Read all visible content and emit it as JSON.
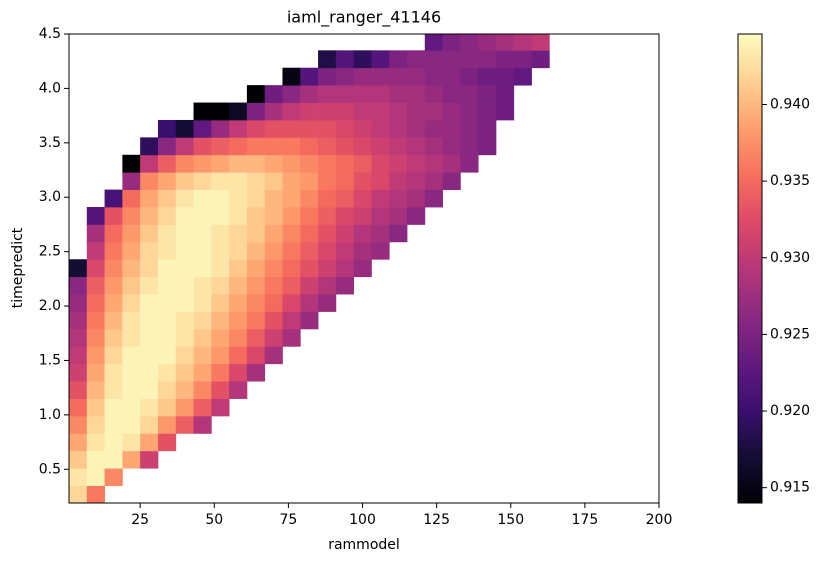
{
  "chart_data": {
    "type": "heatmap",
    "title": "iaml_ranger_41146",
    "xlabel": "rammodel",
    "ylabel": "timepredict",
    "colormap": "magma",
    "xlim": [
      1,
      200
    ],
    "ylim": [
      0.19,
      4.5
    ],
    "xticks": [
      25,
      50,
      75,
      100,
      125,
      150,
      175,
      200
    ],
    "yticks": [
      {
        "value": 0.5,
        "label": "0.5"
      },
      {
        "value": 1.0,
        "label": "1.0"
      },
      {
        "value": 1.5,
        "label": "1.5"
      },
      {
        "value": 2.0,
        "label": "2.0"
      },
      {
        "value": 2.5,
        "label": "2.5"
      },
      {
        "value": 3.0,
        "label": "3.0"
      },
      {
        "value": 3.5,
        "label": "3.5"
      },
      {
        "value": 4.0,
        "label": "4.0"
      },
      {
        "value": 4.5,
        "label": "4.5"
      }
    ],
    "clim": [
      0.914,
      0.9446
    ],
    "cticks": [
      {
        "value": 0.915,
        "label": "0.915"
      },
      {
        "value": 0.92,
        "label": "0.920"
      },
      {
        "value": 0.925,
        "label": "0.925"
      },
      {
        "value": 0.93,
        "label": "0.930"
      },
      {
        "value": 0.935,
        "label": "0.935"
      },
      {
        "value": 0.94,
        "label": "0.940"
      }
    ],
    "x_edges": [
      1,
      7,
      13,
      19,
      25,
      31,
      37,
      43,
      49,
      55,
      61,
      67,
      73,
      79,
      85,
      91,
      97,
      103,
      109,
      115,
      121,
      127,
      133,
      139,
      145,
      151,
      157,
      163
    ],
    "y_edges": [
      0.19,
      0.35,
      0.51,
      0.67,
      0.83,
      0.99,
      1.15,
      1.31,
      1.47,
      1.63,
      1.79,
      1.95,
      2.11,
      2.27,
      2.43,
      2.59,
      2.75,
      2.91,
      3.07,
      3.23,
      3.39,
      3.55,
      3.71,
      3.87,
      4.03,
      4.19,
      4.35,
      4.51
    ],
    "z": [
      [
        0.942,
        0.936,
        null,
        null,
        null,
        null,
        null,
        null,
        null,
        null,
        null,
        null,
        null,
        null,
        null,
        null,
        null,
        null,
        null,
        null,
        null,
        null,
        null,
        null,
        null,
        null,
        null
      ],
      [
        0.943,
        0.944,
        0.937,
        null,
        null,
        null,
        null,
        null,
        null,
        null,
        null,
        null,
        null,
        null,
        null,
        null,
        null,
        null,
        null,
        null,
        null,
        null,
        null,
        null,
        null,
        null,
        null
      ],
      [
        0.941,
        0.944,
        0.944,
        0.939,
        0.931,
        null,
        null,
        null,
        null,
        null,
        null,
        null,
        null,
        null,
        null,
        null,
        null,
        null,
        null,
        null,
        null,
        null,
        null,
        null,
        null,
        null,
        null
      ],
      [
        0.939,
        0.943,
        0.944,
        0.943,
        0.939,
        0.933,
        null,
        null,
        null,
        null,
        null,
        null,
        null,
        null,
        null,
        null,
        null,
        null,
        null,
        null,
        null,
        null,
        null,
        null,
        null,
        null,
        null
      ],
      [
        0.937,
        0.942,
        0.944,
        0.944,
        0.942,
        0.938,
        0.934,
        0.929,
        null,
        null,
        null,
        null,
        null,
        null,
        null,
        null,
        null,
        null,
        null,
        null,
        null,
        null,
        null,
        null,
        null,
        null,
        null
      ],
      [
        0.935,
        0.941,
        0.944,
        0.944,
        0.943,
        0.941,
        0.938,
        0.934,
        0.93,
        null,
        null,
        null,
        null,
        null,
        null,
        null,
        null,
        null,
        null,
        null,
        null,
        null,
        null,
        null,
        null,
        null,
        null
      ],
      [
        0.933,
        0.94,
        0.943,
        0.944,
        0.944,
        0.942,
        0.94,
        0.937,
        0.933,
        0.929,
        null,
        null,
        null,
        null,
        null,
        null,
        null,
        null,
        null,
        null,
        null,
        null,
        null,
        null,
        null,
        null,
        null
      ],
      [
        0.931,
        0.939,
        0.943,
        0.944,
        0.944,
        0.943,
        0.941,
        0.939,
        0.936,
        0.932,
        0.928,
        null,
        null,
        null,
        null,
        null,
        null,
        null,
        null,
        null,
        null,
        null,
        null,
        null,
        null,
        null,
        null
      ],
      [
        0.93,
        0.938,
        0.942,
        0.944,
        0.944,
        0.944,
        0.942,
        0.94,
        0.938,
        0.935,
        0.932,
        0.928,
        null,
        null,
        null,
        null,
        null,
        null,
        null,
        null,
        null,
        null,
        null,
        null,
        null,
        null,
        null
      ],
      [
        0.929,
        0.937,
        0.941,
        0.943,
        0.944,
        0.944,
        0.943,
        0.941,
        0.939,
        0.937,
        0.934,
        0.931,
        0.928,
        null,
        null,
        null,
        null,
        null,
        null,
        null,
        null,
        null,
        null,
        null,
        null,
        null,
        null
      ],
      [
        0.928,
        0.936,
        0.94,
        0.943,
        0.944,
        0.944,
        0.943,
        0.942,
        0.94,
        0.938,
        0.936,
        0.933,
        0.93,
        0.927,
        null,
        null,
        null,
        null,
        null,
        null,
        null,
        null,
        null,
        null,
        null,
        null,
        null
      ],
      [
        0.927,
        0.935,
        0.939,
        0.942,
        0.944,
        0.944,
        0.944,
        0.943,
        0.941,
        0.939,
        0.937,
        0.935,
        0.932,
        0.929,
        0.927,
        null,
        null,
        null,
        null,
        null,
        null,
        null,
        null,
        null,
        null,
        null,
        null
      ],
      [
        0.926,
        0.934,
        0.938,
        0.941,
        0.943,
        0.944,
        0.944,
        0.943,
        0.942,
        0.94,
        0.938,
        0.936,
        0.934,
        0.931,
        0.929,
        0.927,
        null,
        null,
        null,
        null,
        null,
        null,
        null,
        null,
        null,
        null,
        null
      ],
      [
        0.917,
        0.932,
        0.937,
        0.94,
        0.942,
        0.944,
        0.944,
        0.944,
        0.943,
        0.941,
        0.939,
        0.937,
        0.935,
        0.933,
        0.931,
        0.929,
        0.927,
        null,
        null,
        null,
        null,
        null,
        null,
        null,
        null,
        null,
        null
      ],
      [
        null,
        0.93,
        0.936,
        0.939,
        0.942,
        0.943,
        0.944,
        0.944,
        0.943,
        0.942,
        0.94,
        0.938,
        0.936,
        0.934,
        0.932,
        0.93,
        0.928,
        0.927,
        null,
        null,
        null,
        null,
        null,
        null,
        null,
        null,
        null
      ],
      [
        null,
        0.928,
        0.935,
        0.938,
        0.941,
        0.943,
        0.944,
        0.944,
        0.943,
        0.942,
        0.941,
        0.939,
        0.937,
        0.935,
        0.933,
        0.931,
        0.929,
        0.928,
        0.926,
        null,
        null,
        null,
        null,
        null,
        null,
        null,
        null
      ],
      [
        null,
        0.922,
        0.933,
        0.937,
        0.94,
        0.942,
        0.944,
        0.944,
        0.944,
        0.943,
        0.941,
        0.94,
        0.938,
        0.936,
        0.934,
        0.932,
        0.931,
        0.929,
        0.928,
        0.926,
        null,
        null,
        null,
        null,
        null,
        null,
        null
      ],
      [
        null,
        null,
        0.921,
        0.935,
        0.939,
        0.941,
        0.943,
        0.944,
        0.944,
        0.943,
        0.942,
        0.94,
        0.939,
        0.937,
        0.935,
        0.934,
        0.932,
        0.93,
        0.929,
        0.928,
        0.926,
        null,
        null,
        null,
        null,
        null,
        null
      ],
      [
        null,
        null,
        null,
        0.927,
        0.937,
        0.939,
        0.941,
        0.942,
        0.943,
        0.943,
        0.942,
        0.941,
        0.939,
        0.938,
        0.936,
        0.935,
        0.933,
        0.932,
        0.93,
        0.929,
        0.928,
        0.926,
        null,
        null,
        null,
        null,
        null
      ],
      [
        null,
        null,
        null,
        0.914,
        0.93,
        0.934,
        0.937,
        0.938,
        0.939,
        0.94,
        0.94,
        0.939,
        0.938,
        0.937,
        0.936,
        0.935,
        0.934,
        0.932,
        0.931,
        0.93,
        0.929,
        0.928,
        0.926,
        null,
        null,
        null,
        null
      ],
      [
        null,
        null,
        null,
        null,
        0.919,
        0.926,
        0.93,
        0.933,
        0.934,
        0.935,
        0.936,
        0.936,
        0.936,
        0.935,
        0.934,
        0.933,
        0.932,
        0.931,
        0.93,
        0.929,
        0.928,
        0.927,
        0.926,
        0.925,
        null,
        null,
        null
      ],
      [
        null,
        null,
        null,
        null,
        null,
        0.92,
        0.917,
        0.923,
        0.927,
        0.93,
        0.932,
        0.933,
        0.933,
        0.933,
        0.933,
        0.932,
        0.931,
        0.93,
        0.929,
        0.928,
        0.927,
        0.927,
        0.926,
        0.925,
        null,
        null,
        null
      ],
      [
        null,
        null,
        null,
        null,
        null,
        null,
        null,
        0.914,
        0.914,
        0.916,
        0.925,
        0.928,
        0.93,
        0.931,
        0.931,
        0.931,
        0.93,
        0.93,
        0.929,
        0.928,
        0.928,
        0.927,
        0.926,
        0.925,
        0.924,
        null,
        null
      ],
      [
        null,
        null,
        null,
        null,
        null,
        null,
        null,
        null,
        null,
        null,
        0.914,
        0.924,
        0.926,
        0.928,
        0.929,
        0.929,
        0.929,
        0.929,
        0.928,
        0.928,
        0.927,
        0.926,
        0.926,
        0.925,
        0.924,
        null,
        null
      ],
      [
        null,
        null,
        null,
        null,
        null,
        null,
        null,
        null,
        null,
        null,
        null,
        null,
        0.915,
        0.922,
        0.925,
        0.926,
        0.927,
        0.927,
        0.927,
        0.927,
        0.926,
        0.926,
        0.925,
        0.924,
        0.924,
        0.923,
        null
      ],
      [
        null,
        null,
        null,
        null,
        null,
        null,
        null,
        null,
        null,
        null,
        null,
        null,
        null,
        null,
        0.918,
        0.922,
        0.919,
        0.922,
        0.925,
        0.926,
        0.926,
        0.926,
        0.926,
        0.926,
        0.925,
        0.925,
        0.924
      ],
      [
        null,
        null,
        null,
        null,
        null,
        null,
        null,
        null,
        null,
        null,
        null,
        null,
        null,
        null,
        null,
        null,
        null,
        null,
        null,
        null,
        0.923,
        0.925,
        0.926,
        0.927,
        0.928,
        0.929,
        0.93
      ]
    ]
  }
}
